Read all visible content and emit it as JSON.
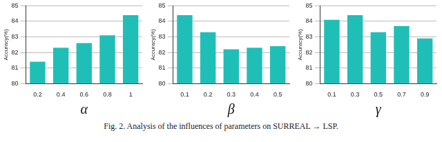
{
  "chart_data": [
    {
      "type": "bar",
      "x_label": "α",
      "y_label": "Accuracy(%)",
      "categories": [
        "0.2",
        "0.4",
        "0.6",
        "0.8",
        "1"
      ],
      "values": [
        81.4,
        82.3,
        82.6,
        83.1,
        84.4
      ],
      "color": "#1fbfb8",
      "ylim": [
        80,
        85
      ],
      "yticks": [
        80,
        81,
        82,
        83,
        84,
        85
      ],
      "grid": true
    },
    {
      "type": "bar",
      "x_label": "β",
      "y_label": "Accuracy(%)",
      "categories": [
        "0.1",
        "0.2",
        "0.3",
        "0.4",
        "0.5"
      ],
      "values": [
        84.4,
        83.3,
        82.2,
        82.3,
        82.4
      ],
      "color": "#1fbfb8",
      "ylim": [
        80,
        85
      ],
      "yticks": [
        80,
        81,
        82,
        83,
        84,
        85
      ],
      "grid": true
    },
    {
      "type": "bar",
      "x_label": "γ",
      "y_label": "Accuracy(%)",
      "categories": [
        "0.1",
        "0.3",
        "0.5",
        "0.7",
        "0.9"
      ],
      "values": [
        84.1,
        84.4,
        83.3,
        83.7,
        82.9
      ],
      "color": "#1fbfb8",
      "ylim": [
        80,
        85
      ],
      "yticks": [
        80,
        81,
        82,
        83,
        84,
        85
      ],
      "grid": true
    }
  ],
  "caption": "Fig. 2.  Analysis of the influences of parameters on SURREAL → LSP."
}
